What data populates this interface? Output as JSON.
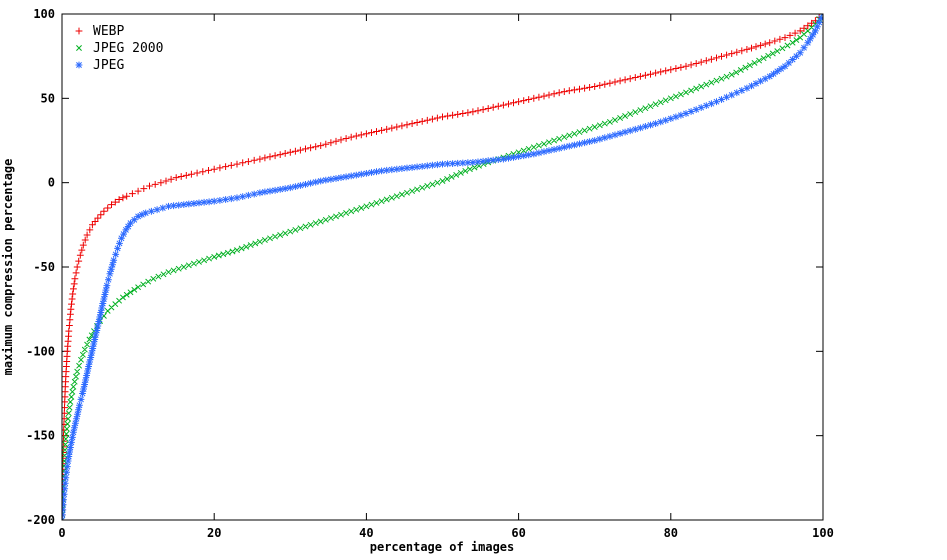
{
  "chart_data": {
    "type": "scatter",
    "title": "",
    "xlabel": "percentage of images",
    "ylabel": "maximum compression percentage",
    "xlim": [
      0,
      100
    ],
    "ylim": [
      -200,
      100
    ],
    "xticks": [
      0,
      20,
      40,
      60,
      80,
      100
    ],
    "yticks": [
      100,
      50,
      0,
      -50,
      -100,
      -150,
      -200
    ],
    "grid": false,
    "legend_position": "top-left",
    "series": [
      {
        "name": "WEBP",
        "marker": "plus",
        "color": "#ee0000",
        "points": [
          [
            0,
            -200
          ],
          [
            0.1,
            -170
          ],
          [
            0.2,
            -150
          ],
          [
            0.35,
            -130
          ],
          [
            0.5,
            -115
          ],
          [
            0.7,
            -100
          ],
          [
            0.9,
            -88
          ],
          [
            1.1,
            -78
          ],
          [
            1.4,
            -66
          ],
          [
            1.7,
            -57
          ],
          [
            2,
            -50
          ],
          [
            2.4,
            -43
          ],
          [
            2.8,
            -37
          ],
          [
            3.3,
            -31
          ],
          [
            4,
            -25
          ],
          [
            4.7,
            -21
          ],
          [
            5.5,
            -17
          ],
          [
            6.5,
            -13
          ],
          [
            7.5,
            -10
          ],
          [
            8.5,
            -8
          ],
          [
            10,
            -5
          ],
          [
            11.5,
            -2
          ],
          [
            13,
            0
          ],
          [
            15,
            3
          ],
          [
            17,
            5
          ],
          [
            20,
            8
          ],
          [
            23,
            11
          ],
          [
            26,
            14
          ],
          [
            30,
            18
          ],
          [
            34,
            22
          ],
          [
            38,
            27
          ],
          [
            42,
            31
          ],
          [
            46,
            35
          ],
          [
            50,
            39
          ],
          [
            54,
            42
          ],
          [
            58,
            46
          ],
          [
            62,
            50
          ],
          [
            66,
            54
          ],
          [
            70,
            57
          ],
          [
            74,
            61
          ],
          [
            78,
            65
          ],
          [
            82,
            69
          ],
          [
            86,
            74
          ],
          [
            90,
            79
          ],
          [
            93,
            83
          ],
          [
            95,
            86
          ],
          [
            97,
            90
          ],
          [
            98,
            93
          ],
          [
            99,
            96
          ],
          [
            99.5,
            98
          ],
          [
            100,
            100
          ]
        ]
      },
      {
        "name": "JPEG 2000",
        "marker": "cross",
        "color": "#00b020",
        "points": [
          [
            0,
            -200
          ],
          [
            0.15,
            -180
          ],
          [
            0.3,
            -165
          ],
          [
            0.5,
            -152
          ],
          [
            0.8,
            -140
          ],
          [
            1.1,
            -130
          ],
          [
            1.5,
            -121
          ],
          [
            2,
            -112
          ],
          [
            2.5,
            -105
          ],
          [
            3,
            -99
          ],
          [
            3.6,
            -93
          ],
          [
            4.2,
            -88
          ],
          [
            5,
            -82
          ],
          [
            6,
            -76
          ],
          [
            7,
            -72
          ],
          [
            8,
            -68
          ],
          [
            9,
            -65
          ],
          [
            10,
            -62
          ],
          [
            12,
            -57
          ],
          [
            14,
            -53
          ],
          [
            16,
            -50
          ],
          [
            18,
            -47
          ],
          [
            20,
            -44
          ],
          [
            23,
            -40
          ],
          [
            26,
            -35
          ],
          [
            30,
            -29
          ],
          [
            34,
            -23
          ],
          [
            38,
            -17
          ],
          [
            42,
            -11
          ],
          [
            46,
            -5
          ],
          [
            50,
            1
          ],
          [
            53,
            7
          ],
          [
            56,
            12
          ],
          [
            60,
            18
          ],
          [
            64,
            24
          ],
          [
            68,
            30
          ],
          [
            72,
            36
          ],
          [
            76,
            43
          ],
          [
            80,
            50
          ],
          [
            84,
            57
          ],
          [
            88,
            64
          ],
          [
            91,
            71
          ],
          [
            94,
            78
          ],
          [
            96,
            83
          ],
          [
            97,
            86
          ],
          [
            98,
            90
          ],
          [
            99,
            94
          ],
          [
            99.5,
            97
          ],
          [
            100,
            100
          ]
        ]
      },
      {
        "name": "JPEG",
        "marker": "asterisk",
        "color": "#2e6bff",
        "points": [
          [
            0,
            -200
          ],
          [
            0.2,
            -188
          ],
          [
            0.5,
            -175
          ],
          [
            0.8,
            -165
          ],
          [
            1.1,
            -157
          ],
          [
            1.5,
            -148
          ],
          [
            1.9,
            -140
          ],
          [
            2.3,
            -132
          ],
          [
            2.7,
            -125
          ],
          [
            3.1,
            -117
          ],
          [
            3.5,
            -109
          ],
          [
            3.9,
            -101
          ],
          [
            4.3,
            -93
          ],
          [
            4.7,
            -85
          ],
          [
            5.1,
            -77
          ],
          [
            5.5,
            -69
          ],
          [
            5.9,
            -61
          ],
          [
            6.3,
            -54
          ],
          [
            6.8,
            -46
          ],
          [
            7.3,
            -39
          ],
          [
            7.8,
            -33
          ],
          [
            8.4,
            -28
          ],
          [
            9,
            -24
          ],
          [
            10,
            -20
          ],
          [
            11,
            -18
          ],
          [
            12.5,
            -16
          ],
          [
            14,
            -14
          ],
          [
            16,
            -13
          ],
          [
            18,
            -12
          ],
          [
            20,
            -11
          ],
          [
            23,
            -9
          ],
          [
            26,
            -6
          ],
          [
            30,
            -3
          ],
          [
            34,
            1
          ],
          [
            38,
            4
          ],
          [
            42,
            7
          ],
          [
            46,
            9
          ],
          [
            50,
            11
          ],
          [
            54,
            12
          ],
          [
            58,
            14
          ],
          [
            62,
            17
          ],
          [
            66,
            21
          ],
          [
            70,
            25
          ],
          [
            74,
            30
          ],
          [
            78,
            35
          ],
          [
            82,
            41
          ],
          [
            86,
            48
          ],
          [
            90,
            56
          ],
          [
            93,
            63
          ],
          [
            95,
            69
          ],
          [
            97,
            77
          ],
          [
            98,
            83
          ],
          [
            99,
            90
          ],
          [
            99.5,
            95
          ],
          [
            100,
            100
          ]
        ]
      }
    ]
  }
}
